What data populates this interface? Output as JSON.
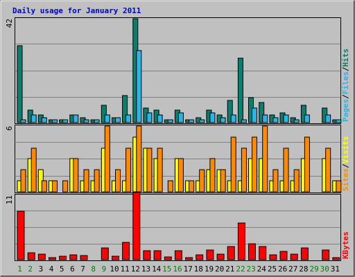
{
  "title": "Daily usage for January 2011",
  "colors": {
    "background": "#c0c0c0",
    "title": "#0000cc",
    "hits": "#0b7f6f",
    "files": "#2bb5e6",
    "pages": "#0b7f6f",
    "visits": "#ffff00",
    "sites": "#ff8a00",
    "kbytes": "#ff0000",
    "weekend_day_label": "#008000",
    "weekday_day_label": "#000000",
    "grid": "#808080"
  },
  "chart_data": [
    {
      "type": "bar",
      "panel": "hits-files-pages",
      "legend": [
        "Pages",
        "Files",
        "Hits"
      ],
      "ymax_label": "42",
      "ylim": [
        0,
        42
      ],
      "categories": [
        "1",
        "2",
        "3",
        "4",
        "5",
        "6",
        "7",
        "8",
        "9",
        "10",
        "11",
        "12",
        "13",
        "14",
        "15",
        "16",
        "17",
        "18",
        "19",
        "20",
        "21",
        "22",
        "23",
        "24",
        "25",
        "26",
        "27",
        "28",
        "29",
        "30",
        "31"
      ],
      "series": [
        {
          "name": "Hits",
          "values": [
            31,
            5,
            3,
            1,
            1,
            3,
            2,
            1,
            7,
            2,
            11,
            42,
            6,
            5,
            1,
            5,
            1,
            2,
            5,
            3,
            9,
            26,
            10,
            8,
            3,
            4,
            2,
            7,
            0,
            6,
            1
          ]
        },
        {
          "name": "Files",
          "values": [
            1,
            3,
            2,
            1,
            1,
            3,
            1,
            1,
            3,
            2,
            3,
            29,
            4,
            3,
            1,
            4,
            1,
            1,
            4,
            2,
            3,
            1,
            6,
            3,
            2,
            3,
            1,
            3,
            0,
            3,
            1
          ]
        }
      ]
    },
    {
      "type": "bar",
      "panel": "visits-sites",
      "legend": [
        "Sites",
        "Visits"
      ],
      "ymax_label": "6",
      "ylim": [
        0,
        6
      ],
      "categories": [
        "1",
        "2",
        "3",
        "4",
        "5",
        "6",
        "7",
        "8",
        "9",
        "10",
        "11",
        "12",
        "13",
        "14",
        "15",
        "16",
        "17",
        "18",
        "19",
        "20",
        "21",
        "22",
        "23",
        "24",
        "25",
        "26",
        "27",
        "28",
        "29",
        "30",
        "31"
      ],
      "series": [
        {
          "name": "Visits",
          "values": [
            1,
            3,
            2,
            1,
            0,
            3,
            1,
            1,
            4,
            1,
            1,
            5,
            4,
            3,
            0,
            3,
            1,
            1,
            2,
            2,
            1,
            1,
            3,
            3,
            1,
            1,
            1,
            3,
            0,
            3,
            1
          ]
        },
        {
          "name": "Sites",
          "values": [
            2,
            4,
            1,
            1,
            1,
            3,
            2,
            2,
            6,
            2,
            4,
            6,
            4,
            4,
            1,
            3,
            1,
            2,
            3,
            2,
            5,
            4,
            5,
            6,
            2,
            4,
            2,
            5,
            0,
            4,
            1
          ]
        }
      ]
    },
    {
      "type": "bar",
      "panel": "kbytes",
      "legend": [
        "KBytes"
      ],
      "ymax_label": "11",
      "ylim": [
        0,
        11
      ],
      "categories": [
        "1",
        "2",
        "3",
        "4",
        "5",
        "6",
        "7",
        "8",
        "9",
        "10",
        "11",
        "12",
        "13",
        "14",
        "15",
        "16",
        "17",
        "18",
        "19",
        "20",
        "21",
        "22",
        "23",
        "24",
        "25",
        "26",
        "27",
        "28",
        "29",
        "30",
        "31"
      ],
      "series": [
        {
          "name": "KBytes",
          "values": [
            8.3,
            1.2,
            1.0,
            0.4,
            0.6,
            0.8,
            0.7,
            0,
            2.0,
            0.6,
            3.0,
            11.5,
            1.5,
            1.5,
            0.5,
            1.5,
            0.3,
            0.8,
            1.7,
            1.0,
            2.3,
            6.3,
            2.7,
            2.3,
            0.8,
            1.4,
            0.9,
            2.0,
            0,
            1.7,
            0.4
          ]
        }
      ]
    }
  ],
  "day_labels": [
    "1",
    "2",
    "3",
    "4",
    "5",
    "6",
    "7",
    "8",
    "9",
    "10",
    "11",
    "12",
    "13",
    "14",
    "15",
    "16",
    "17",
    "18",
    "19",
    "20",
    "21",
    "22",
    "23",
    "24",
    "25",
    "26",
    "27",
    "28",
    "29",
    "30",
    "31"
  ],
  "weekend_days": [
    1,
    2,
    8,
    9,
    15,
    16,
    22,
    23,
    29,
    30
  ]
}
